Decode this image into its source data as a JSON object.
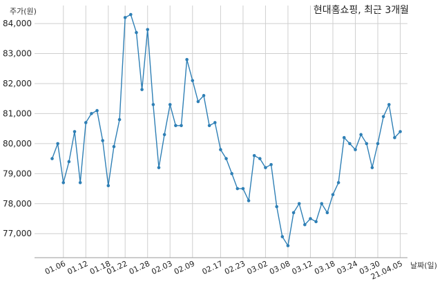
{
  "chart_data": {
    "type": "line",
    "title": "현대홈쇼핑, 최근 3개월",
    "xlabel": "날짜(일)",
    "ylabel": "주가(원)",
    "ylim": [
      76200,
      84600
    ],
    "yticks": [
      77000,
      78000,
      79000,
      80000,
      81000,
      82000,
      83000,
      84000
    ],
    "ytick_labels": [
      "77,000",
      "78,000",
      "79,000",
      "80,000",
      "81,000",
      "82,000",
      "83,000",
      "84,000"
    ],
    "xtick_labels": [
      "01.06",
      "01.12",
      "01.18",
      "01.22",
      "01.28",
      "02.03",
      "02.09",
      "02.17",
      "02.23",
      "03.02",
      "03.08",
      "03.12",
      "03.18",
      "03.24",
      "03.30",
      "21.04.05"
    ],
    "xtick_index": [
      2,
      6,
      10,
      13,
      17,
      21,
      25,
      30,
      34,
      38,
      42,
      46,
      50,
      54,
      58,
      62
    ],
    "grid": true,
    "series": [
      {
        "color": "#2e7fb5",
        "values": [
          79500,
          80000,
          78700,
          79400,
          80400,
          78700,
          80700,
          81000,
          81100,
          80100,
          78600,
          79900,
          80800,
          84200,
          84300,
          83700,
          81800,
          83800,
          81300,
          79200,
          80300,
          81300,
          80600,
          80600,
          82800,
          82100,
          81400,
          81600,
          80600,
          80700,
          79800,
          79500,
          79000,
          78500,
          78500,
          78100,
          79600,
          79500,
          79200,
          79300,
          77900,
          76900,
          76600,
          77700,
          78000,
          77300,
          77500,
          77400,
          78000,
          77700,
          78300,
          78700,
          80200,
          80000,
          79800,
          80300,
          80000,
          79200,
          80000,
          80900,
          81300,
          80200,
          80400
        ]
      }
    ]
  }
}
